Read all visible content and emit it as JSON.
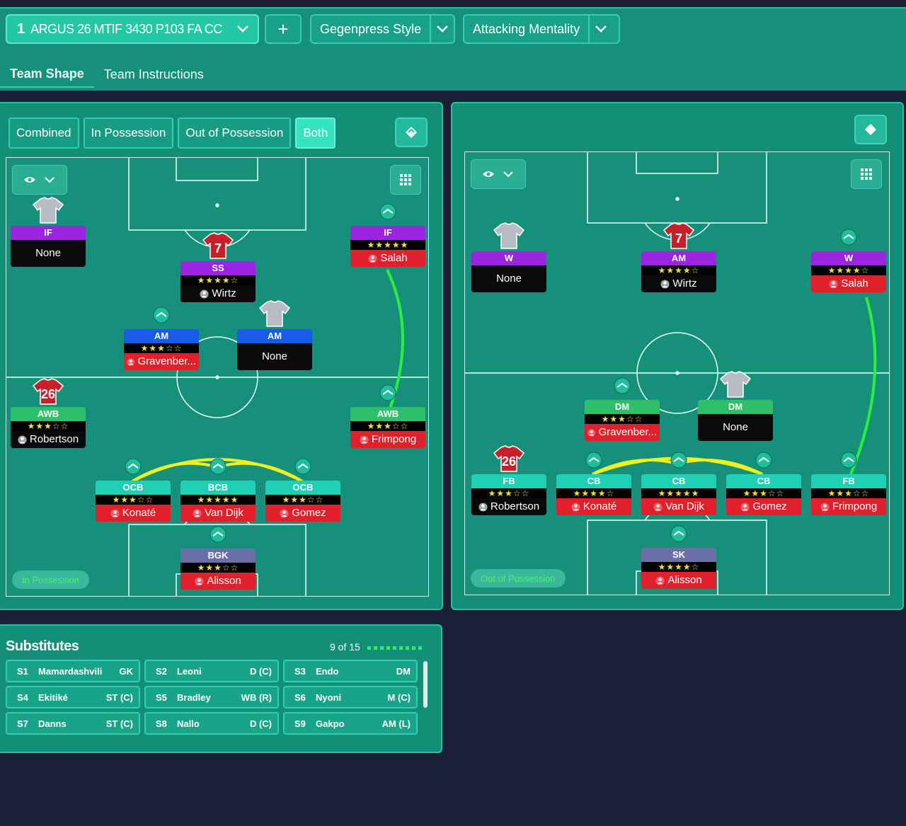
{
  "top": {
    "tactic_num": "1",
    "tactic_name": "ARGUS 26 MTIF 3430 P103 FA CC",
    "add_label": "+",
    "style_label": "Gegenpress",
    "style_suffix": "Style",
    "mentality_label": "Attacking",
    "mentality_suffix": "Mentality"
  },
  "tabs": [
    "Team Shape",
    "Team Instructions"
  ],
  "view_toggles": [
    "Combined",
    "In Possession",
    "Out of Possession",
    "Both"
  ],
  "left_phase": "In Possession",
  "right_phase": "Out of Possession",
  "left_players": [
    {
      "role": "IF",
      "stars": "",
      "name": "None",
      "type": "none",
      "color": "purple"
    },
    {
      "role": "SS",
      "stars": "★★★★☆",
      "name": "Wirtz",
      "type": "blk",
      "color": "purple"
    },
    {
      "role": "IF",
      "stars": "★★★★★",
      "name": "Salah",
      "type": "red",
      "color": "purple"
    },
    {
      "role": "AM",
      "stars": "★★★☆☆",
      "name": "Gravenber...",
      "type": "red",
      "color": "blue"
    },
    {
      "role": "AM",
      "stars": "",
      "name": "None",
      "type": "none",
      "color": "blue"
    },
    {
      "role": "AWB",
      "stars": "★★★☆☆",
      "name": "Robertson",
      "type": "blk",
      "color": "green"
    },
    {
      "role": "AWB",
      "stars": "★★★☆☆",
      "name": "Frimpong",
      "type": "red",
      "color": "green"
    },
    {
      "role": "OCB",
      "stars": "★★★☆☆",
      "name": "Konaté",
      "type": "red",
      "color": "teal"
    },
    {
      "role": "BCB",
      "stars": "★★★★★",
      "name": "Van Dijk",
      "type": "red",
      "color": "teal"
    },
    {
      "role": "OCB",
      "stars": "★★★☆☆",
      "name": "Gomez",
      "type": "red",
      "color": "teal"
    },
    {
      "role": "BGK",
      "stars": "★★★☆☆",
      "name": "Alisson",
      "type": "red",
      "color": "slate"
    }
  ],
  "right_players": [
    {
      "role": "W",
      "stars": "",
      "name": "None",
      "type": "none",
      "color": "purple"
    },
    {
      "role": "AM",
      "stars": "★★★★☆",
      "name": "Wirtz",
      "type": "blk",
      "color": "purple"
    },
    {
      "role": "W",
      "stars": "★★★★☆",
      "name": "Salah",
      "type": "red",
      "color": "purple"
    },
    {
      "role": "DM",
      "stars": "★★★☆☆",
      "name": "Gravenber...",
      "type": "red",
      "color": "green"
    },
    {
      "role": "DM",
      "stars": "",
      "name": "None",
      "type": "none",
      "color": "green"
    },
    {
      "role": "FB",
      "stars": "★★★☆☆",
      "name": "Robertson",
      "type": "blk",
      "color": "teal"
    },
    {
      "role": "CB",
      "stars": "★★★★☆",
      "name": "Konaté",
      "type": "red",
      "color": "teal"
    },
    {
      "role": "CB",
      "stars": "★★★★★",
      "name": "Van Dijk",
      "type": "red",
      "color": "teal"
    },
    {
      "role": "CB",
      "stars": "★★★☆☆",
      "name": "Gomez",
      "type": "red",
      "color": "teal"
    },
    {
      "role": "FB",
      "stars": "★★★☆☆",
      "name": "Frimpong",
      "type": "red",
      "color": "teal"
    },
    {
      "role": "SK",
      "stars": "★★★★☆",
      "name": "Alisson",
      "type": "red",
      "color": "slate"
    }
  ],
  "shirt_numbers": {
    "wirtz": "7",
    "robertson": "26"
  },
  "subs": {
    "title": "Substitutes",
    "count": "9 of 15",
    "rows": [
      [
        {
          "n": "S1",
          "name": "Mamardashvili",
          "pos": "GK"
        },
        {
          "n": "S2",
          "name": "Leoni",
          "pos": "D (C)"
        },
        {
          "n": "S3",
          "name": "Endo",
          "pos": "DM"
        }
      ],
      [
        {
          "n": "S4",
          "name": "Ekitiké",
          "pos": "ST (C)"
        },
        {
          "n": "S5",
          "name": "Bradley",
          "pos": "WB (R)"
        },
        {
          "n": "S6",
          "name": "Nyoni",
          "pos": "M (C)"
        }
      ],
      [
        {
          "n": "S7",
          "name": "Danns",
          "pos": "ST (C)"
        },
        {
          "n": "S8",
          "name": "Nallo",
          "pos": "D (C)"
        },
        {
          "n": "S9",
          "name": "Gakpo",
          "pos": "AM (L)"
        }
      ]
    ]
  }
}
